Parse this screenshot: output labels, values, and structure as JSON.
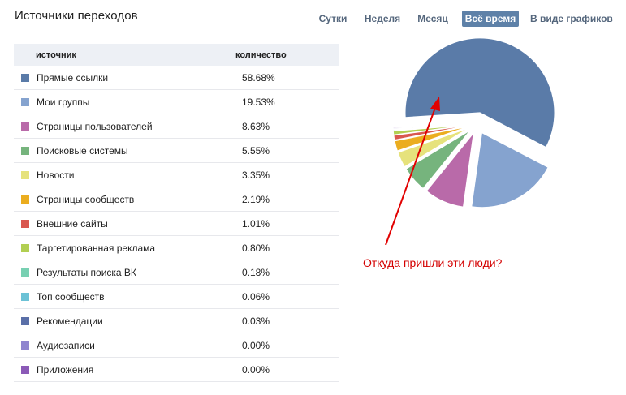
{
  "header": {
    "title": "Источники переходов"
  },
  "tabs": [
    {
      "label": "Сутки",
      "active": false
    },
    {
      "label": "Неделя",
      "active": false
    },
    {
      "label": "Месяц",
      "active": false
    },
    {
      "label": "Всё время",
      "active": true
    },
    {
      "label": "В виде графиков",
      "active": false
    }
  ],
  "table": {
    "col_source": "источник",
    "col_count": "количество",
    "rows": [
      {
        "name": "Прямые ссылки",
        "value": "58.68%",
        "color": "#5a7ba8"
      },
      {
        "name": "Мои группы",
        "value": "19.53%",
        "color": "#85a3cf"
      },
      {
        "name": "Страницы пользователей",
        "value": "8.63%",
        "color": "#b96aa9"
      },
      {
        "name": "Поисковые системы",
        "value": "5.55%",
        "color": "#76b47d"
      },
      {
        "name": "Новости",
        "value": "3.35%",
        "color": "#e6e27c"
      },
      {
        "name": "Страницы сообществ",
        "value": "2.19%",
        "color": "#ebad1f"
      },
      {
        "name": "Внешние сайты",
        "value": "1.01%",
        "color": "#d9574f"
      },
      {
        "name": "Таргетированная реклама",
        "value": "0.80%",
        "color": "#b2cf52"
      },
      {
        "name": "Результаты поиска ВК",
        "value": "0.18%",
        "color": "#78d0b2"
      },
      {
        "name": "Топ сообществ",
        "value": "0.06%",
        "color": "#6cc2d6"
      },
      {
        "name": "Рекомендации",
        "value": "0.03%",
        "color": "#5a6fa8"
      },
      {
        "name": "Аудиозаписи",
        "value": "0.00%",
        "color": "#8f85cf"
      },
      {
        "name": "Приложения",
        "value": "0.00%",
        "color": "#8b5ab7"
      }
    ]
  },
  "annotation": {
    "text": "Откуда пришли эти люди?",
    "color": "#d40000"
  },
  "chart_data": {
    "type": "pie",
    "categories": [
      "Прямые ссылки",
      "Мои группы",
      "Страницы пользователей",
      "Поисковые системы",
      "Новости",
      "Страницы сообществ",
      "Внешние сайты",
      "Таргетированная реклама",
      "Результаты поиска ВК",
      "Топ сообществ",
      "Рекомендации",
      "Аудиозаписи",
      "Приложения"
    ],
    "values": [
      58.68,
      19.53,
      8.63,
      5.55,
      3.35,
      2.19,
      1.01,
      0.8,
      0.18,
      0.06,
      0.03,
      0.0,
      0.0
    ],
    "colors": [
      "#5a7ba8",
      "#85a3cf",
      "#b96aa9",
      "#76b47d",
      "#e6e27c",
      "#ebad1f",
      "#d9574f",
      "#b2cf52",
      "#78d0b2",
      "#6cc2d6",
      "#5a6fa8",
      "#8f85cf",
      "#8b5ab7"
    ],
    "exploded": true
  }
}
